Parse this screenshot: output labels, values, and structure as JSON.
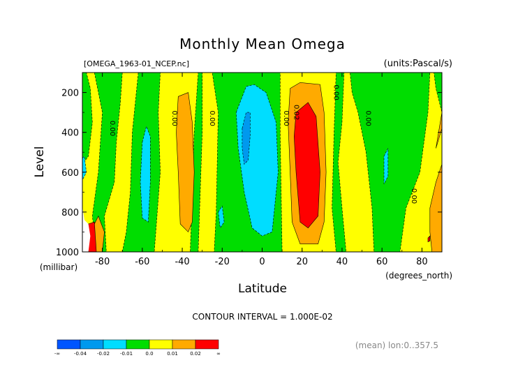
{
  "chart_data": {
    "type": "heatmap",
    "title": "Monthly Mean Omega",
    "file_label": "[OMEGA_1963-01_NCEP.nc]",
    "units_label": "(units:Pascal/s)",
    "xlabel": "Latitude",
    "ylabel": "Level",
    "x_unit_label": "(degrees_north)",
    "y_unit_label": "(millibar)",
    "xlim": [
      -90,
      90
    ],
    "ylim": [
      1000,
      100
    ],
    "x_ticks": [
      {
        "value": -80,
        "label": "-80"
      },
      {
        "value": -60,
        "label": "-60"
      },
      {
        "value": -40,
        "label": "-40"
      },
      {
        "value": -20,
        "label": "-20"
      },
      {
        "value": 0,
        "label": "0"
      },
      {
        "value": 20,
        "label": "20"
      },
      {
        "value": 40,
        "label": "40"
      },
      {
        "value": 60,
        "label": "60"
      },
      {
        "value": 80,
        "label": "80"
      }
    ],
    "y_ticks": [
      {
        "value": 200,
        "label": "200"
      },
      {
        "value": 400,
        "label": "400"
      },
      {
        "value": 600,
        "label": "600"
      },
      {
        "value": 800,
        "label": "800"
      },
      {
        "value": 1000,
        "label": "1000"
      }
    ],
    "contour_interval_label": "CONTOUR INTERVAL = 1.000E-02",
    "footer_label": "(mean) lon:0..357.5",
    "legend": {
      "colors": [
        "#0055ff",
        "#0099ee",
        "#00ddff",
        "#00dd00",
        "#ffff00",
        "#ffaa00",
        "#ff0000"
      ],
      "tick_labels": [
        "-∞",
        "-0.04",
        "-0.02",
        "-0.01",
        "0.0",
        "0.01",
        "0.02",
        "∞"
      ]
    },
    "contour_labels": [
      {
        "text": "0.00",
        "lat": -76,
        "lev": 380
      },
      {
        "text": "0.00",
        "lat": -45,
        "lev": 330
      },
      {
        "text": "0.00",
        "lat": -26,
        "lev": 330
      },
      {
        "text": "0.00",
        "lat": 11,
        "lev": 330
      },
      {
        "text": "0.02",
        "lat": 16,
        "lev": 300
      },
      {
        "text": "0.00",
        "lat": 36,
        "lev": 200
      },
      {
        "text": "0.00",
        "lat": 52,
        "lev": 330
      },
      {
        "text": "0.00",
        "lat": 75,
        "lev": 720
      }
    ],
    "regions": [
      {
        "value": 0.005,
        "color": "#ffff00",
        "points": [
          [
            -90,
            100
          ],
          [
            90,
            100
          ],
          [
            90,
            1000
          ],
          [
            -90,
            1000
          ]
        ]
      },
      {
        "value": -0.005,
        "color": "#00dd00",
        "points": [
          [
            -90,
            100
          ],
          [
            -88,
            100
          ],
          [
            -86,
            180
          ],
          [
            -85,
            350
          ],
          [
            -87,
            520
          ],
          [
            -90,
            560
          ]
        ]
      },
      {
        "value": -0.005,
        "color": "#00dd00",
        "points": [
          [
            -84,
            100
          ],
          [
            -70,
            100
          ],
          [
            -71,
            250
          ],
          [
            -73,
            450
          ],
          [
            -74,
            650
          ],
          [
            -79,
            820
          ],
          [
            -78,
            1000
          ],
          [
            -83,
            1000
          ],
          [
            -85,
            820
          ],
          [
            -82,
            600
          ],
          [
            -80,
            300
          ]
        ]
      },
      {
        "value": -0.005,
        "color": "#00dd00",
        "points": [
          [
            -62,
            100
          ],
          [
            -51,
            100
          ],
          [
            -52,
            300
          ],
          [
            -51,
            600
          ],
          [
            -54,
            1000
          ],
          [
            -70,
            1000
          ],
          [
            -68,
            900
          ],
          [
            -66,
            700
          ],
          [
            -65,
            400
          ]
        ]
      },
      {
        "value": -0.005,
        "color": "#00dd00",
        "points": [
          [
            -32,
            100
          ],
          [
            -30,
            100
          ],
          [
            -30,
            400
          ],
          [
            -31,
            700
          ],
          [
            -32,
            1000
          ],
          [
            -36,
            1000
          ],
          [
            -35,
            700
          ],
          [
            -34,
            400
          ]
        ]
      },
      {
        "value": -0.005,
        "color": "#00dd00",
        "points": [
          [
            -25,
            100
          ],
          [
            9,
            100
          ],
          [
            9,
            400
          ],
          [
            10,
            1000
          ],
          [
            -24,
            1000
          ],
          [
            -23,
            800
          ],
          [
            -22,
            300
          ]
        ]
      },
      {
        "value": -0.005,
        "color": "#00dd00",
        "points": [
          [
            37,
            100
          ],
          [
            41,
            100
          ],
          [
            40,
            350
          ],
          [
            38,
            550
          ],
          [
            40,
            780
          ],
          [
            42,
            1000
          ],
          [
            37,
            1000
          ],
          [
            35,
            780
          ],
          [
            36,
            400
          ]
        ]
      },
      {
        "value": -0.005,
        "color": "#00dd00",
        "points": [
          [
            44,
            100
          ],
          [
            84,
            100
          ],
          [
            83,
            300
          ],
          [
            79,
            600
          ],
          [
            72,
            780
          ],
          [
            69,
            1000
          ],
          [
            56,
            1000
          ],
          [
            55,
            780
          ],
          [
            52,
            500
          ],
          [
            48,
            300
          ],
          [
            45,
            200
          ]
        ]
      },
      {
        "value": -0.005,
        "color": "#00dd00",
        "points": [
          [
            86,
            100
          ],
          [
            90,
            100
          ],
          [
            90,
            300
          ],
          [
            87,
            180
          ]
        ]
      },
      {
        "value": 0.015,
        "color": "#ffaa00",
        "points": [
          [
            -82,
            820
          ],
          [
            -85,
            880
          ],
          [
            -87,
            1000
          ],
          [
            -80,
            1000
          ],
          [
            -79,
            900
          ]
        ]
      },
      {
        "value": 0.015,
        "color": "#ffaa00",
        "points": [
          [
            -42,
            220
          ],
          [
            -37,
            200
          ],
          [
            -35,
            350
          ],
          [
            -34,
            600
          ],
          [
            -35,
            850
          ],
          [
            -37,
            900
          ],
          [
            -41,
            860
          ],
          [
            -42,
            600
          ],
          [
            -43,
            400
          ]
        ]
      },
      {
        "value": 0.015,
        "color": "#ffaa00",
        "points": [
          [
            14,
            180
          ],
          [
            19,
            150
          ],
          [
            29,
            160
          ],
          [
            31,
            300
          ],
          [
            32,
            600
          ],
          [
            31,
            850
          ],
          [
            28,
            960
          ],
          [
            19,
            960
          ],
          [
            15,
            850
          ],
          [
            14,
            600
          ],
          [
            13,
            350
          ]
        ]
      },
      {
        "value": 0.015,
        "color": "#ffaa00",
        "points": [
          [
            84,
            780
          ],
          [
            87,
            650
          ],
          [
            90,
            560
          ],
          [
            90,
            1000
          ],
          [
            85,
            1000
          ],
          [
            84,
            900
          ]
        ]
      },
      {
        "value": 0.015,
        "color": "#ffaa00",
        "points": [
          [
            87,
            480
          ],
          [
            90,
            300
          ],
          [
            90,
            380
          ]
        ]
      },
      {
        "value": 0.025,
        "color": "#ff0000",
        "points": [
          [
            17,
            300
          ],
          [
            23,
            250
          ],
          [
            27,
            320
          ],
          [
            29,
            600
          ],
          [
            28,
            820
          ],
          [
            23,
            880
          ],
          [
            19,
            850
          ],
          [
            17,
            600
          ],
          [
            16,
            420
          ]
        ]
      },
      {
        "value": 0.025,
        "color": "#ff0000",
        "points": [
          [
            -87,
            860
          ],
          [
            -84,
            850
          ],
          [
            -83,
            1000
          ],
          [
            -87,
            1000
          ]
        ]
      },
      {
        "value": -0.015,
        "color": "#00ddff",
        "points": [
          [
            -13,
            300
          ],
          [
            -8,
            170
          ],
          [
            -4,
            160
          ],
          [
            2,
            200
          ],
          [
            7,
            350
          ],
          [
            8,
            600
          ],
          [
            5,
            900
          ],
          [
            0,
            920
          ],
          [
            -5,
            880
          ],
          [
            -9,
            700
          ],
          [
            -12,
            480
          ]
        ]
      },
      {
        "value": -0.015,
        "color": "#00ddff",
        "points": [
          [
            -60,
            450
          ],
          [
            -58,
            370
          ],
          [
            -56,
            420
          ],
          [
            -56,
            650
          ],
          [
            -57,
            850
          ],
          [
            -60,
            830
          ],
          [
            -61,
            650
          ]
        ]
      },
      {
        "value": -0.015,
        "color": "#00ddff",
        "points": [
          [
            -22,
            800
          ],
          [
            -20,
            770
          ],
          [
            -19,
            850
          ],
          [
            -21,
            880
          ]
        ]
      },
      {
        "value": -0.015,
        "color": "#00ddff",
        "points": [
          [
            -90,
            530
          ],
          [
            -89,
            520
          ],
          [
            -88,
            600
          ],
          [
            -90,
            640
          ]
        ]
      },
      {
        "value": -0.015,
        "color": "#00ddff",
        "points": [
          [
            61,
            520
          ],
          [
            63,
            480
          ],
          [
            63,
            620
          ],
          [
            61,
            660
          ]
        ]
      },
      {
        "value": -0.025,
        "color": "#0099ee",
        "points": [
          [
            -10,
            380
          ],
          [
            -8,
            300
          ],
          [
            -6,
            300
          ],
          [
            -6,
            420
          ],
          [
            -7,
            540
          ],
          [
            -9,
            560
          ],
          [
            -10,
            480
          ]
        ]
      },
      {
        "value": 0.005,
        "color": "#ffffff",
        "points": [
          [
            -90,
            770
          ],
          [
            -89,
            840
          ],
          [
            -87,
            860
          ],
          [
            -86,
            920
          ],
          [
            -87,
            1000
          ],
          [
            -90,
            1000
          ]
        ]
      },
      {
        "value": 0.025,
        "color": "#ff0000",
        "points": [
          [
            83,
            930
          ],
          [
            84,
            920
          ],
          [
            84,
            945
          ],
          [
            83,
            950
          ]
        ]
      }
    ]
  }
}
